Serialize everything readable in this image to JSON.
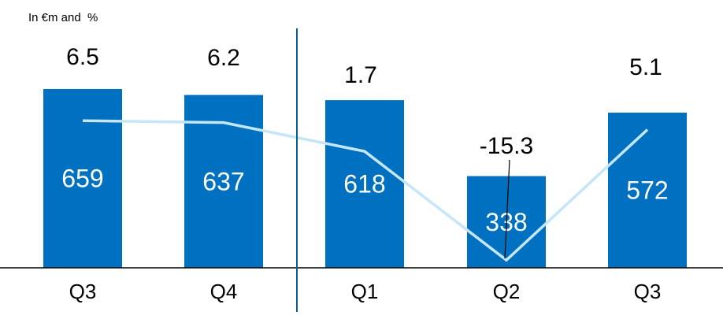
{
  "unit_label": "In €m and  %",
  "chart_data": {
    "type": "bar",
    "categories": [
      "Q3",
      "Q4",
      "Q1",
      "Q2",
      "Q3"
    ],
    "series": [
      {
        "type": "bar",
        "values": [
          659,
          637,
          618,
          338,
          572
        ]
      },
      {
        "type": "line",
        "values": [
          6.5,
          6.2,
          1.7,
          -15.3,
          5.1
        ],
        "value_labels": [
          "6.5",
          "6.2",
          "1.7",
          "-15.3",
          "5.1"
        ]
      }
    ],
    "bar_color": "#0070C0",
    "line_color": "#C5E6F8",
    "divider_after_category_index": 1,
    "grid": false,
    "legend": "none"
  }
}
